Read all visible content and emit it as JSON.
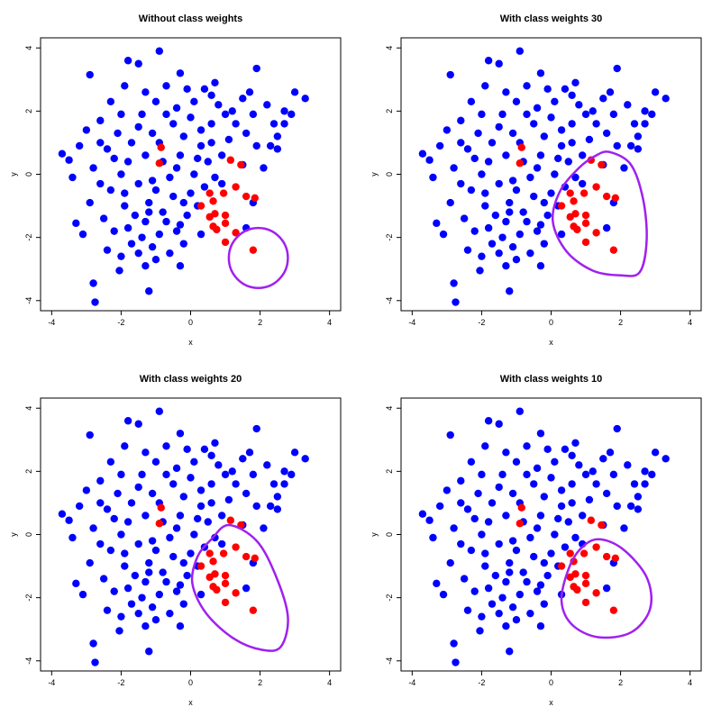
{
  "chart_data": [
    {
      "type": "scatter",
      "title": "Without class weights",
      "xlabel": "x",
      "ylabel": "y",
      "xlim": [
        -4,
        4
      ],
      "ylim": [
        -4,
        4
      ],
      "xticks": [
        "-4",
        "-2",
        "0",
        "2",
        "4"
      ],
      "yticks": [
        "-4",
        "-2",
        "0",
        "2",
        "4"
      ],
      "boundary": {
        "cx": 1.95,
        "cy": -2.65,
        "rx": 0.85,
        "ry": 0.95,
        "shape": "circle"
      }
    },
    {
      "type": "scatter",
      "title": "With class weights 30",
      "xlabel": "x",
      "ylabel": "y",
      "xlim": [
        -4,
        4
      ],
      "ylim": [
        -4,
        4
      ],
      "xticks": [
        "-4",
        "-2",
        "0",
        "2",
        "4"
      ],
      "yticks": [
        "-4",
        "-2",
        "0",
        "2",
        "4"
      ],
      "boundary": {
        "points": [
          [
            1.7,
            0.7
          ],
          [
            2.3,
            0.3
          ],
          [
            2.65,
            -0.8
          ],
          [
            2.75,
            -2.1
          ],
          [
            2.55,
            -3.1
          ],
          [
            2.0,
            -3.2
          ],
          [
            1.2,
            -3.05
          ],
          [
            0.45,
            -2.45
          ],
          [
            0.05,
            -1.5
          ],
          [
            0.25,
            -0.55
          ],
          [
            0.8,
            0.2
          ],
          [
            1.3,
            0.6
          ]
        ],
        "shape": "closed-curve"
      }
    },
    {
      "type": "scatter",
      "title": "With class weights 20",
      "xlabel": "x",
      "ylabel": "y",
      "xlim": [
        -4,
        4
      ],
      "ylim": [
        -4,
        4
      ],
      "xticks": [
        "-4",
        "-2",
        "0",
        "2",
        "4"
      ],
      "yticks": [
        "-4",
        "-2",
        "0",
        "2",
        "4"
      ],
      "boundary": {
        "points": [
          [
            1.1,
            0.3
          ],
          [
            1.9,
            -0.2
          ],
          [
            2.45,
            -1.3
          ],
          [
            2.8,
            -2.6
          ],
          [
            2.6,
            -3.55
          ],
          [
            2.05,
            -3.65
          ],
          [
            1.25,
            -3.3
          ],
          [
            0.45,
            -2.5
          ],
          [
            0.05,
            -1.55
          ],
          [
            0.2,
            -0.7
          ],
          [
            0.6,
            -0.15
          ]
        ],
        "shape": "closed-curve"
      }
    },
    {
      "type": "scatter",
      "title": "With class weights 10",
      "xlabel": "x",
      "ylabel": "y",
      "xlim": [
        -4,
        4
      ],
      "ylim": [
        -4,
        4
      ],
      "xticks": [
        "-4",
        "-2",
        "0",
        "2",
        "4"
      ],
      "yticks": [
        "-4",
        "-2",
        "0",
        "2",
        "4"
      ],
      "boundary": {
        "points": [
          [
            1.35,
            -0.15
          ],
          [
            2.05,
            -0.45
          ],
          [
            2.75,
            -1.35
          ],
          [
            2.85,
            -2.35
          ],
          [
            2.3,
            -3.1
          ],
          [
            1.35,
            -3.25
          ],
          [
            0.6,
            -2.85
          ],
          [
            0.3,
            -2.1
          ],
          [
            0.5,
            -1.1
          ],
          [
            0.85,
            -0.45
          ]
        ],
        "shape": "closed-curve"
      }
    }
  ],
  "shared_points": {
    "majority_color": "#0000ff",
    "minority_color": "#ff0000",
    "boundary_color": "#a020f0",
    "majority": [
      [
        -0.9,
        3.9
      ],
      [
        1.9,
        3.35
      ],
      [
        -2.9,
        3.15
      ],
      [
        0.7,
        2.9
      ],
      [
        -1.8,
        3.6
      ],
      [
        -1.5,
        3.5
      ],
      [
        -0.3,
        3.2
      ],
      [
        3.0,
        2.6
      ],
      [
        3.3,
        2.4
      ],
      [
        -3.7,
        0.65
      ],
      [
        -3.5,
        0.45
      ],
      [
        -3.3,
        -1.55
      ],
      [
        -2.8,
        -3.45
      ],
      [
        -2.75,
        -4.05
      ],
      [
        -1.2,
        -3.7
      ],
      [
        -2.05,
        -3.05
      ],
      [
        -1.3,
        -2.9
      ],
      [
        -0.6,
        -2.5
      ],
      [
        -2.4,
        -2.4
      ],
      [
        -1.1,
        -2.3
      ],
      [
        -3.1,
        -1.9
      ],
      [
        2.9,
        1.9
      ],
      [
        2.7,
        1.6
      ],
      [
        2.3,
        0.9
      ],
      [
        2.5,
        0.8
      ],
      [
        1.5,
        0.3
      ],
      [
        0.9,
        -0.3
      ],
      [
        1.6,
        -1.7
      ],
      [
        0.3,
        -1.9
      ],
      [
        -0.3,
        -1.6
      ],
      [
        1.8,
        -0.9
      ],
      [
        2.1,
        0.2
      ],
      [
        2.5,
        1.2
      ],
      [
        2.2,
        2.2
      ],
      [
        1.5,
        2.4
      ],
      [
        1.2,
        2.0
      ],
      [
        0.4,
        2.7
      ],
      [
        -0.7,
        2.8
      ],
      [
        -1.9,
        2.8
      ],
      [
        -2.3,
        2.3
      ],
      [
        -2.6,
        1.7
      ],
      [
        -3.0,
        1.4
      ],
      [
        -3.2,
        0.9
      ],
      [
        -3.4,
        -0.1
      ],
      [
        -2.9,
        -0.9
      ],
      [
        -2.5,
        -1.4
      ],
      [
        -1.8,
        -1.7
      ],
      [
        -1.4,
        -2.0
      ],
      [
        -0.9,
        -1.9
      ],
      [
        -0.2,
        -2.2
      ],
      [
        0.2,
        -1.0
      ],
      [
        -0.5,
        -0.7
      ],
      [
        -1.0,
        -0.5
      ],
      [
        -1.5,
        -0.3
      ],
      [
        -2.0,
        0.0
      ],
      [
        -2.2,
        0.5
      ],
      [
        -1.7,
        1.0
      ],
      [
        -1.1,
        1.3
      ],
      [
        -0.5,
        1.6
      ],
      [
        0.0,
        1.8
      ],
      [
        0.6,
        1.6
      ],
      [
        1.1,
        1.1
      ],
      [
        1.6,
        1.3
      ],
      [
        1.9,
        0.9
      ],
      [
        0.3,
        0.9
      ],
      [
        -0.3,
        0.6
      ],
      [
        -0.8,
        0.4
      ],
      [
        -1.3,
        0.6
      ],
      [
        0.5,
        0.4
      ],
      [
        0.1,
        0.0
      ],
      [
        -0.6,
        -0.1
      ],
      [
        -1.2,
        -0.9
      ],
      [
        -1.9,
        -1.0
      ],
      [
        -2.3,
        -0.5
      ],
      [
        -1.6,
        -1.3
      ],
      [
        -0.8,
        -1.2
      ],
      [
        -0.1,
        -1.3
      ],
      [
        0.4,
        -0.4
      ],
      [
        0.9,
        0.6
      ],
      [
        1.3,
        1.6
      ],
      [
        0.8,
        2.2
      ],
      [
        0.1,
        2.3
      ],
      [
        -0.4,
        2.1
      ],
      [
        -1.0,
        2.3
      ],
      [
        -1.4,
        1.9
      ],
      [
        -2.0,
        1.9
      ],
      [
        -2.6,
        1.0
      ],
      [
        -2.8,
        0.2
      ],
      [
        -2.6,
        -0.3
      ],
      [
        -1.3,
        -1.5
      ],
      [
        -0.4,
        -1.8
      ],
      [
        0.0,
        -0.6
      ],
      [
        0.6,
        1.0
      ],
      [
        1.0,
        1.9
      ],
      [
        1.8,
        1.9
      ],
      [
        2.4,
        1.6
      ],
      [
        -0.2,
        1.2
      ],
      [
        -0.9,
        1.0
      ],
      [
        -1.5,
        1.5
      ],
      [
        -2.1,
        1.3
      ],
      [
        -1.8,
        0.4
      ],
      [
        -1.1,
        -0.2
      ],
      [
        -0.4,
        0.2
      ],
      [
        0.2,
        0.5
      ],
      [
        0.7,
        -0.1
      ],
      [
        -0.7,
        -1.5
      ],
      [
        -1.7,
        -2.2
      ],
      [
        -2.0,
        -2.6
      ],
      [
        -1.0,
        -2.7
      ],
      [
        -0.3,
        -2.9
      ],
      [
        -1.5,
        -2.5
      ],
      [
        -2.2,
        -1.8
      ],
      [
        -0.7,
        1.9
      ],
      [
        0.3,
        1.4
      ],
      [
        -1.3,
        2.6
      ],
      [
        -0.1,
        2.7
      ],
      [
        1.7,
        2.6
      ],
      [
        2.7,
        2.0
      ],
      [
        -2.4,
        0.8
      ],
      [
        -1.9,
        -0.6
      ],
      [
        -1.2,
        -1.2
      ],
      [
        -0.2,
        -0.9
      ],
      [
        0.6,
        2.5
      ]
    ],
    "minority": [
      [
        -0.85,
        0.85
      ],
      [
        -0.9,
        0.35
      ],
      [
        1.15,
        0.45
      ],
      [
        1.45,
        0.3
      ],
      [
        0.55,
        -0.6
      ],
      [
        0.65,
        -0.85
      ],
      [
        0.3,
        -1.0
      ],
      [
        0.95,
        -0.6
      ],
      [
        1.3,
        -0.4
      ],
      [
        0.7,
        -1.25
      ],
      [
        1.0,
        -1.3
      ],
      [
        1.6,
        -0.7
      ],
      [
        1.85,
        -0.75
      ],
      [
        0.55,
        -1.35
      ],
      [
        0.65,
        -1.65
      ],
      [
        0.75,
        -1.75
      ],
      [
        1.0,
        -1.55
      ],
      [
        1.3,
        -1.85
      ],
      [
        1.0,
        -2.15
      ],
      [
        1.8,
        -2.4
      ]
    ]
  }
}
